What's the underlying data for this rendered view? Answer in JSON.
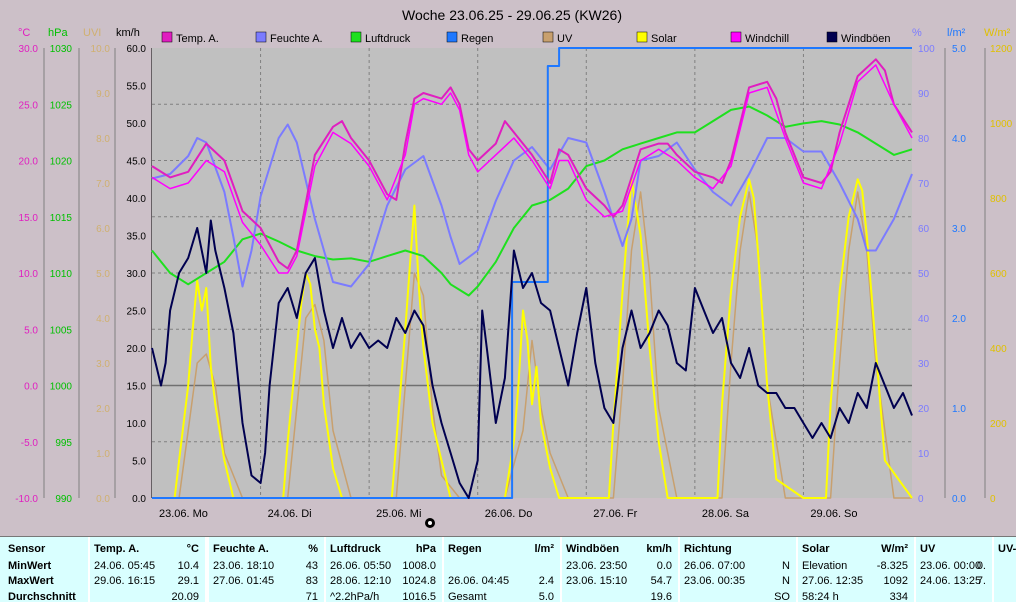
{
  "title": "Woche 23.06.25 - 29.06.25 (KW26)",
  "axis_units": {
    "temp": "°C",
    "pressure": "hPa",
    "uv": "UVI",
    "wind": "km/h",
    "humidity": "%",
    "rain": "l/m²",
    "solar": "W/m²"
  },
  "colors": {
    "temp": "#e01ec0",
    "humidity": "#7b7bff",
    "pressure": "#1ee01e",
    "rain": "#1e78ff",
    "uv": "#c8a06e",
    "solar": "#ffff00",
    "windchill": "#ff00ff",
    "gust": "#000050",
    "plot_bg": "#c0c0c0",
    "grid": "#808080",
    "pressure_tick": "#00c000",
    "uv_tick": "#d0b070",
    "solar_tick": "#e0c000"
  },
  "legend": [
    {
      "name": "Temp. A.",
      "color": "#e01ec0"
    },
    {
      "name": "Feuchte A.",
      "color": "#7b7bff"
    },
    {
      "name": "Luftdruck",
      "color": "#1ee01e"
    },
    {
      "name": "Regen",
      "color": "#1e78ff"
    },
    {
      "name": "UV",
      "color": "#c8a06e"
    },
    {
      "name": "Solar",
      "color": "#ffff00"
    },
    {
      "name": "Windchill",
      "color": "#ff00ff"
    },
    {
      "name": "Windböen",
      "color": "#000050"
    }
  ],
  "chart_data": {
    "type": "line",
    "title": "Woche 23.06.25 - 29.06.25 (KW26)",
    "x_labels": [
      "23.06. Mo",
      "24.06. Di",
      "25.06. Mi",
      "26.06. Do",
      "27.06. Fr",
      "28.06. Sa",
      "29.06. So"
    ],
    "x_range_hours": [
      0,
      168
    ],
    "axes": {
      "temp": {
        "min": -10,
        "max": 30,
        "ticks": [
          "30.0",
          "25.0",
          "20.0",
          "15.0",
          "10.0",
          "5.0",
          "0.0",
          "-5.0",
          "-10.0"
        ]
      },
      "pressure": {
        "min": 990,
        "max": 1030,
        "ticks": [
          "1030",
          "1025",
          "1020",
          "1015",
          "1010",
          "1005",
          "1000",
          "995",
          "990"
        ]
      },
      "uv": {
        "min": 0,
        "max": 10,
        "ticks": [
          "10.0",
          "9.0",
          "8.0",
          "7.0",
          "6.0",
          "5.0",
          "4.0",
          "3.0",
          "2.0",
          "1.0",
          "0.0"
        ]
      },
      "wind": {
        "min": 0,
        "max": 60,
        "ticks": [
          "60.0",
          "55.0",
          "50.0",
          "45.0",
          "40.0",
          "35.0",
          "30.0",
          "25.0",
          "20.0",
          "15.0",
          "10.0",
          "5.0",
          "0.0"
        ]
      },
      "humidity": {
        "min": 0,
        "max": 100,
        "ticks": [
          "100",
          "90",
          "80",
          "70",
          "60",
          "50",
          "40",
          "30",
          "20",
          "10",
          "0"
        ]
      },
      "rain": {
        "min": 0,
        "max": 5,
        "ticks": [
          "5.0",
          "4.0",
          "3.0",
          "2.0",
          "1.0",
          "0.0"
        ]
      },
      "solar": {
        "min": 0,
        "max": 1200,
        "ticks": [
          "1200",
          "1000",
          "800",
          "600",
          "400",
          "200",
          "0"
        ]
      }
    },
    "series": [
      {
        "name": "Temp. A.",
        "axis": "temp",
        "x_hours": [
          0,
          4,
          8,
          12,
          16,
          20,
          24,
          28,
          30,
          32,
          36,
          40,
          42,
          44,
          48,
          52,
          54,
          56,
          58,
          60,
          64,
          66,
          68,
          70,
          72,
          76,
          78,
          80,
          84,
          88,
          90,
          92,
          96,
          100,
          102,
          104,
          108,
          112,
          114,
          116,
          120,
          124,
          126,
          128,
          132,
          136,
          138,
          140,
          144,
          148,
          150,
          152,
          156,
          160,
          162,
          164,
          168
        ],
        "values": [
          19.5,
          18.5,
          19.0,
          21.5,
          20.0,
          15.5,
          14.0,
          11.0,
          10.4,
          12.0,
          20.5,
          23.0,
          23.5,
          22.0,
          20.0,
          17.0,
          16.5,
          21.5,
          25.5,
          26.0,
          25.5,
          26.5,
          25.0,
          21.0,
          20.0,
          21.5,
          23.5,
          22.5,
          20.5,
          18.0,
          21.0,
          20.5,
          17.5,
          16.0,
          15.0,
          16.0,
          21.0,
          21.5,
          21.5,
          20.5,
          19.0,
          18.5,
          18.0,
          20.0,
          26.5,
          27.0,
          25.5,
          22.5,
          18.5,
          18.0,
          19.0,
          22.5,
          27.5,
          29.0,
          28.0,
          25.0,
          22.5
        ]
      },
      {
        "name": "Feuchte A.",
        "axis": "humidity",
        "x_hours": [
          0,
          4,
          8,
          10,
          12,
          16,
          18,
          20,
          22,
          24,
          28,
          30,
          32,
          36,
          40,
          44,
          48,
          52,
          56,
          60,
          64,
          66,
          68,
          72,
          76,
          80,
          84,
          88,
          92,
          96,
          100,
          104,
          106,
          108,
          112,
          116,
          120,
          124,
          128,
          132,
          136,
          140,
          144,
          148,
          152,
          156,
          158,
          160,
          164,
          168
        ],
        "values": [
          71,
          72,
          76,
          80,
          79,
          68,
          58,
          47,
          55,
          67,
          80,
          83,
          79,
          62,
          48,
          47,
          52,
          65,
          73,
          76,
          65,
          58,
          52,
          55,
          66,
          75,
          78,
          73,
          80,
          79,
          68,
          56,
          62,
          75,
          76,
          79,
          73,
          68,
          65,
          72,
          80,
          80,
          77,
          77,
          70,
          62,
          55,
          55,
          62,
          72
        ]
      },
      {
        "name": "Luftdruck",
        "axis": "pressure",
        "x_hours": [
          0,
          4,
          8,
          12,
          16,
          20,
          24,
          28,
          32,
          36,
          40,
          44,
          48,
          52,
          56,
          60,
          64,
          66,
          68,
          70,
          72,
          76,
          80,
          84,
          88,
          92,
          96,
          100,
          104,
          108,
          112,
          116,
          120,
          124,
          128,
          132,
          136,
          140,
          144,
          148,
          152,
          156,
          160,
          164,
          168
        ],
        "values": [
          1012,
          1010,
          1009,
          1010,
          1011,
          1013,
          1013.5,
          1012.8,
          1012,
          1011.5,
          1011.2,
          1011.3,
          1011,
          1011.5,
          1012,
          1011.5,
          1010,
          1009,
          1008.5,
          1008,
          1008.8,
          1011,
          1014,
          1016,
          1016.5,
          1017.5,
          1019.5,
          1020,
          1021,
          1021.5,
          1022,
          1022.5,
          1022.5,
          1023.5,
          1024.5,
          1024.8,
          1024,
          1023,
          1023.3,
          1023.5,
          1023.2,
          1022.5,
          1021.5,
          1020.5,
          1021
        ]
      },
      {
        "name": "Regen",
        "axis": "rain",
        "x_hours": [
          0,
          79.6,
          79.6,
          87.5,
          87.5,
          90,
          90,
          108,
          108,
          168
        ],
        "values": [
          0,
          0,
          2.4,
          2.4,
          4.8,
          4.8,
          5.0,
          5.0,
          5.0,
          5.0
        ]
      },
      {
        "name": "UV",
        "axis": "uv",
        "x_hours": [
          0,
          6,
          8,
          10,
          12,
          14,
          16,
          20,
          24,
          30,
          32,
          34,
          36,
          38,
          40,
          44,
          48,
          54,
          56,
          58,
          60,
          62,
          64,
          68,
          72,
          78,
          82,
          84,
          86,
          88,
          92,
          96,
          102,
          104,
          106,
          108,
          110,
          112,
          116,
          120,
          126,
          128,
          130,
          132,
          134,
          136,
          140,
          144,
          150,
          152,
          154,
          156,
          158,
          160,
          164,
          168
        ],
        "values": [
          0,
          0,
          1.5,
          3.0,
          3.2,
          2.5,
          1.0,
          0,
          0,
          0,
          2.0,
          4.0,
          4.3,
          3.5,
          1.5,
          0,
          0,
          0,
          2.5,
          5.0,
          4.5,
          2.0,
          0.5,
          0,
          0,
          0,
          1.5,
          3.5,
          2.0,
          1.0,
          0,
          0,
          0,
          2.5,
          5.5,
          6.8,
          5.0,
          2.0,
          0,
          0,
          0,
          3.0,
          5.5,
          6.8,
          5.5,
          2.5,
          0,
          0,
          0,
          3.0,
          5.5,
          6.8,
          5.5,
          3.0,
          0,
          0
        ]
      },
      {
        "name": "Solar",
        "axis": "solar",
        "x_hours": [
          0,
          5,
          6,
          8,
          9,
          10,
          11,
          12,
          13,
          14,
          16,
          18,
          24,
          29,
          30,
          32,
          33,
          34,
          35,
          36,
          37,
          38,
          40,
          42,
          48,
          53,
          54,
          56,
          57,
          58,
          59,
          60,
          62,
          64,
          66,
          72,
          78,
          80,
          81,
          82,
          83,
          84,
          85,
          86,
          88,
          90,
          96,
          101,
          102,
          104,
          105,
          106,
          108,
          110,
          112,
          114,
          120,
          125,
          126,
          128,
          130,
          132,
          133,
          134,
          136,
          138,
          144,
          149,
          150,
          152,
          154,
          156,
          157,
          158,
          160,
          162,
          168
        ],
        "values": [
          0,
          0,
          100,
          300,
          450,
          580,
          500,
          560,
          350,
          250,
          100,
          0,
          0,
          0,
          150,
          400,
          520,
          600,
          570,
          450,
          400,
          250,
          80,
          0,
          0,
          0,
          150,
          450,
          620,
          780,
          560,
          400,
          200,
          100,
          0,
          0,
          0,
          150,
          300,
          500,
          420,
          250,
          350,
          200,
          80,
          0,
          0,
          0,
          200,
          550,
          700,
          850,
          700,
          400,
          150,
          0,
          0,
          0,
          250,
          550,
          750,
          850,
          800,
          650,
          300,
          50,
          0,
          0,
          250,
          550,
          750,
          850,
          820,
          700,
          400,
          100,
          0
        ]
      },
      {
        "name": "Windchill",
        "axis": "temp",
        "x_hours": [
          0,
          4,
          8,
          12,
          16,
          20,
          24,
          28,
          30,
          32,
          36,
          40,
          44,
          48,
          52,
          56,
          58,
          60,
          64,
          66,
          68,
          70,
          72,
          76,
          80,
          84,
          88,
          90,
          92,
          96,
          100,
          104,
          108,
          112,
          116,
          120,
          124,
          128,
          132,
          136,
          140,
          144,
          148,
          152,
          156,
          160,
          164,
          168
        ],
        "values": [
          18.5,
          17.5,
          18.0,
          20.0,
          19.0,
          14.5,
          12.5,
          10.0,
          10.0,
          11.5,
          19.5,
          22.5,
          21.5,
          19.5,
          16.5,
          20.5,
          25.0,
          25.5,
          25.0,
          26.0,
          24.5,
          20.5,
          19.0,
          20.5,
          22.0,
          20.0,
          17.5,
          20.0,
          20.0,
          16.5,
          15.0,
          15.5,
          20.0,
          21.0,
          20.0,
          18.5,
          17.5,
          19.5,
          26.0,
          26.5,
          22.0,
          18.0,
          17.5,
          21.5,
          27.0,
          28.5,
          25.0,
          22.0
        ]
      },
      {
        "name": "Windböen",
        "axis": "wind",
        "x_hours": [
          0,
          2,
          3,
          4,
          6,
          8,
          10,
          12,
          13,
          14,
          16,
          18,
          20,
          22,
          24,
          25,
          26,
          28,
          30,
          32,
          34,
          36,
          38,
          40,
          42,
          44,
          46,
          48,
          50,
          52,
          54,
          56,
          58,
          60,
          62,
          64,
          66,
          68,
          70,
          72,
          73,
          74,
          76,
          78,
          80,
          82,
          84,
          86,
          88,
          90,
          92,
          94,
          96,
          98,
          100,
          102,
          104,
          106,
          108,
          110,
          112,
          114,
          116,
          118,
          120,
          122,
          124,
          126,
          128,
          130,
          132,
          134,
          136,
          138,
          140,
          142,
          144,
          146,
          148,
          150,
          152,
          154,
          156,
          158,
          160,
          162,
          164,
          166,
          168
        ],
        "values": [
          20,
          15,
          18,
          25,
          30,
          32,
          36,
          30,
          37,
          33,
          28,
          22,
          10,
          3,
          2,
          6,
          15,
          26,
          28,
          24,
          30,
          32,
          25,
          20,
          24,
          20,
          22,
          20,
          21,
          20,
          24,
          22,
          25,
          23,
          15,
          10,
          6,
          2,
          0,
          5,
          25,
          20,
          10,
          16,
          33,
          28,
          30,
          26,
          25,
          20,
          15,
          22,
          28,
          18,
          12,
          10,
          20,
          25,
          20,
          22,
          25,
          23,
          18,
          17,
          28,
          25,
          22,
          24,
          18,
          16,
          20,
          15,
          14,
          14,
          12,
          12,
          10,
          8,
          10,
          8,
          12,
          10,
          14,
          12,
          18,
          15,
          12,
          14,
          11
        ]
      }
    ]
  },
  "stats": {
    "row_labels": [
      "Sensor",
      "MinWert",
      "MaxWert",
      "Durchschnitt"
    ],
    "columns": [
      {
        "header": "Temp. A.",
        "unit": "°C",
        "min_time": "24.06. 05:45",
        "min_val": "10.4",
        "max_time": "29.06. 16:15",
        "max_val": "29.1",
        "avg_val": "20.09"
      },
      {
        "header": "Feuchte A.",
        "unit": "%",
        "min_time": "23.06. 18:10",
        "min_val": "43",
        "max_time": "27.06. 01:45",
        "max_val": "83",
        "avg_val": "71"
      },
      {
        "header": "Luftdruck",
        "unit": "hPa",
        "min_time": "26.06. 05:50",
        "min_val": "1008.0",
        "max_time": "28.06. 12:10",
        "max_val": "1024.8",
        "avg_time": "^2.2hPa/h",
        "avg_val": "1016.5"
      },
      {
        "header": "Regen",
        "unit": "l/m²",
        "min_time": "",
        "min_val": "",
        "max_time": "26.06. 04:45",
        "max_val": "2.4",
        "avg_time": "Gesamt",
        "avg_val": "5.0"
      },
      {
        "header": "Windböen",
        "unit": "km/h",
        "min_time": "23.06. 23:50",
        "min_val": "0.0",
        "max_time": "23.06. 15:10",
        "max_val": "54.7",
        "avg_val": "19.6"
      },
      {
        "header": "Richtung",
        "unit": "",
        "min_time": "26.06. 07:00",
        "min_val": "N",
        "max_time": "23.06. 00:35",
        "max_val": "N",
        "avg_val": "SO"
      },
      {
        "header": "Solar",
        "unit": "W/m²",
        "min_time": "Elevation",
        "min_val": "-8.325",
        "max_time": "27.06. 12:35",
        "max_val": "1092",
        "avg_time": "58:24 h",
        "avg_val": "334"
      },
      {
        "header": "UV",
        "unit": "",
        "min_time": "23.06. 00:00",
        "min_val": "0.",
        "max_time": "24.06. 13:25",
        "max_val": "7.",
        "avg_val": ""
      },
      {
        "header": "UV-",
        "unit": "",
        "min_time": "",
        "min_val": "",
        "max_time": "",
        "max_val": "",
        "avg_val": ""
      }
    ]
  }
}
